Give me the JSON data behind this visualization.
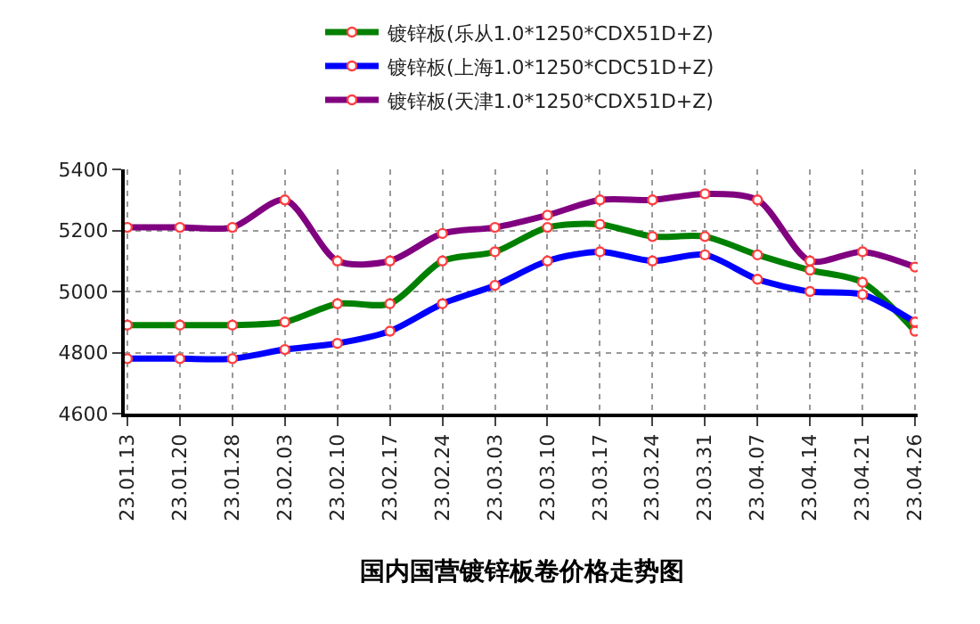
{
  "chart_data": {
    "type": "line",
    "title": "国内国营镀锌板卷价格走势图",
    "categories": [
      "23.01.13",
      "23.01.20",
      "23.01.28",
      "23.02.03",
      "23.02.10",
      "23.02.17",
      "23.02.24",
      "23.03.03",
      "23.03.10",
      "23.03.17",
      "23.03.24",
      "23.03.31",
      "23.04.07",
      "23.04.14",
      "23.04.21",
      "23.04.26"
    ],
    "series": [
      {
        "name": "镀锌板(乐从1.0*1250*CDX51D+Z)",
        "color": "#008000",
        "values": [
          4890,
          4890,
          4890,
          4900,
          4960,
          4960,
          5100,
          5130,
          5210,
          5220,
          5180,
          5180,
          5120,
          5070,
          5030,
          4870
        ]
      },
      {
        "name": "镀锌板(上海1.0*1250*CDC51D+Z)",
        "color": "#0000ff",
        "values": [
          4780,
          4780,
          4780,
          4810,
          4830,
          4870,
          4960,
          5020,
          5100,
          5130,
          5100,
          5120,
          5040,
          5000,
          4990,
          4900
        ]
      },
      {
        "name": "镀锌板(天津1.0*1250*CDX51D+Z)",
        "color": "#800080",
        "values": [
          5210,
          5210,
          5210,
          5300,
          5100,
          5100,
          5190,
          5210,
          5250,
          5300,
          5300,
          5320,
          5300,
          5100,
          5130,
          5080
        ]
      }
    ],
    "ylim": [
      4600,
      5400
    ],
    "yticks": [
      4600,
      4800,
      5000,
      5200,
      5400
    ],
    "grid": true,
    "legend": "top",
    "marker": "circle",
    "line_style": "solid"
  }
}
